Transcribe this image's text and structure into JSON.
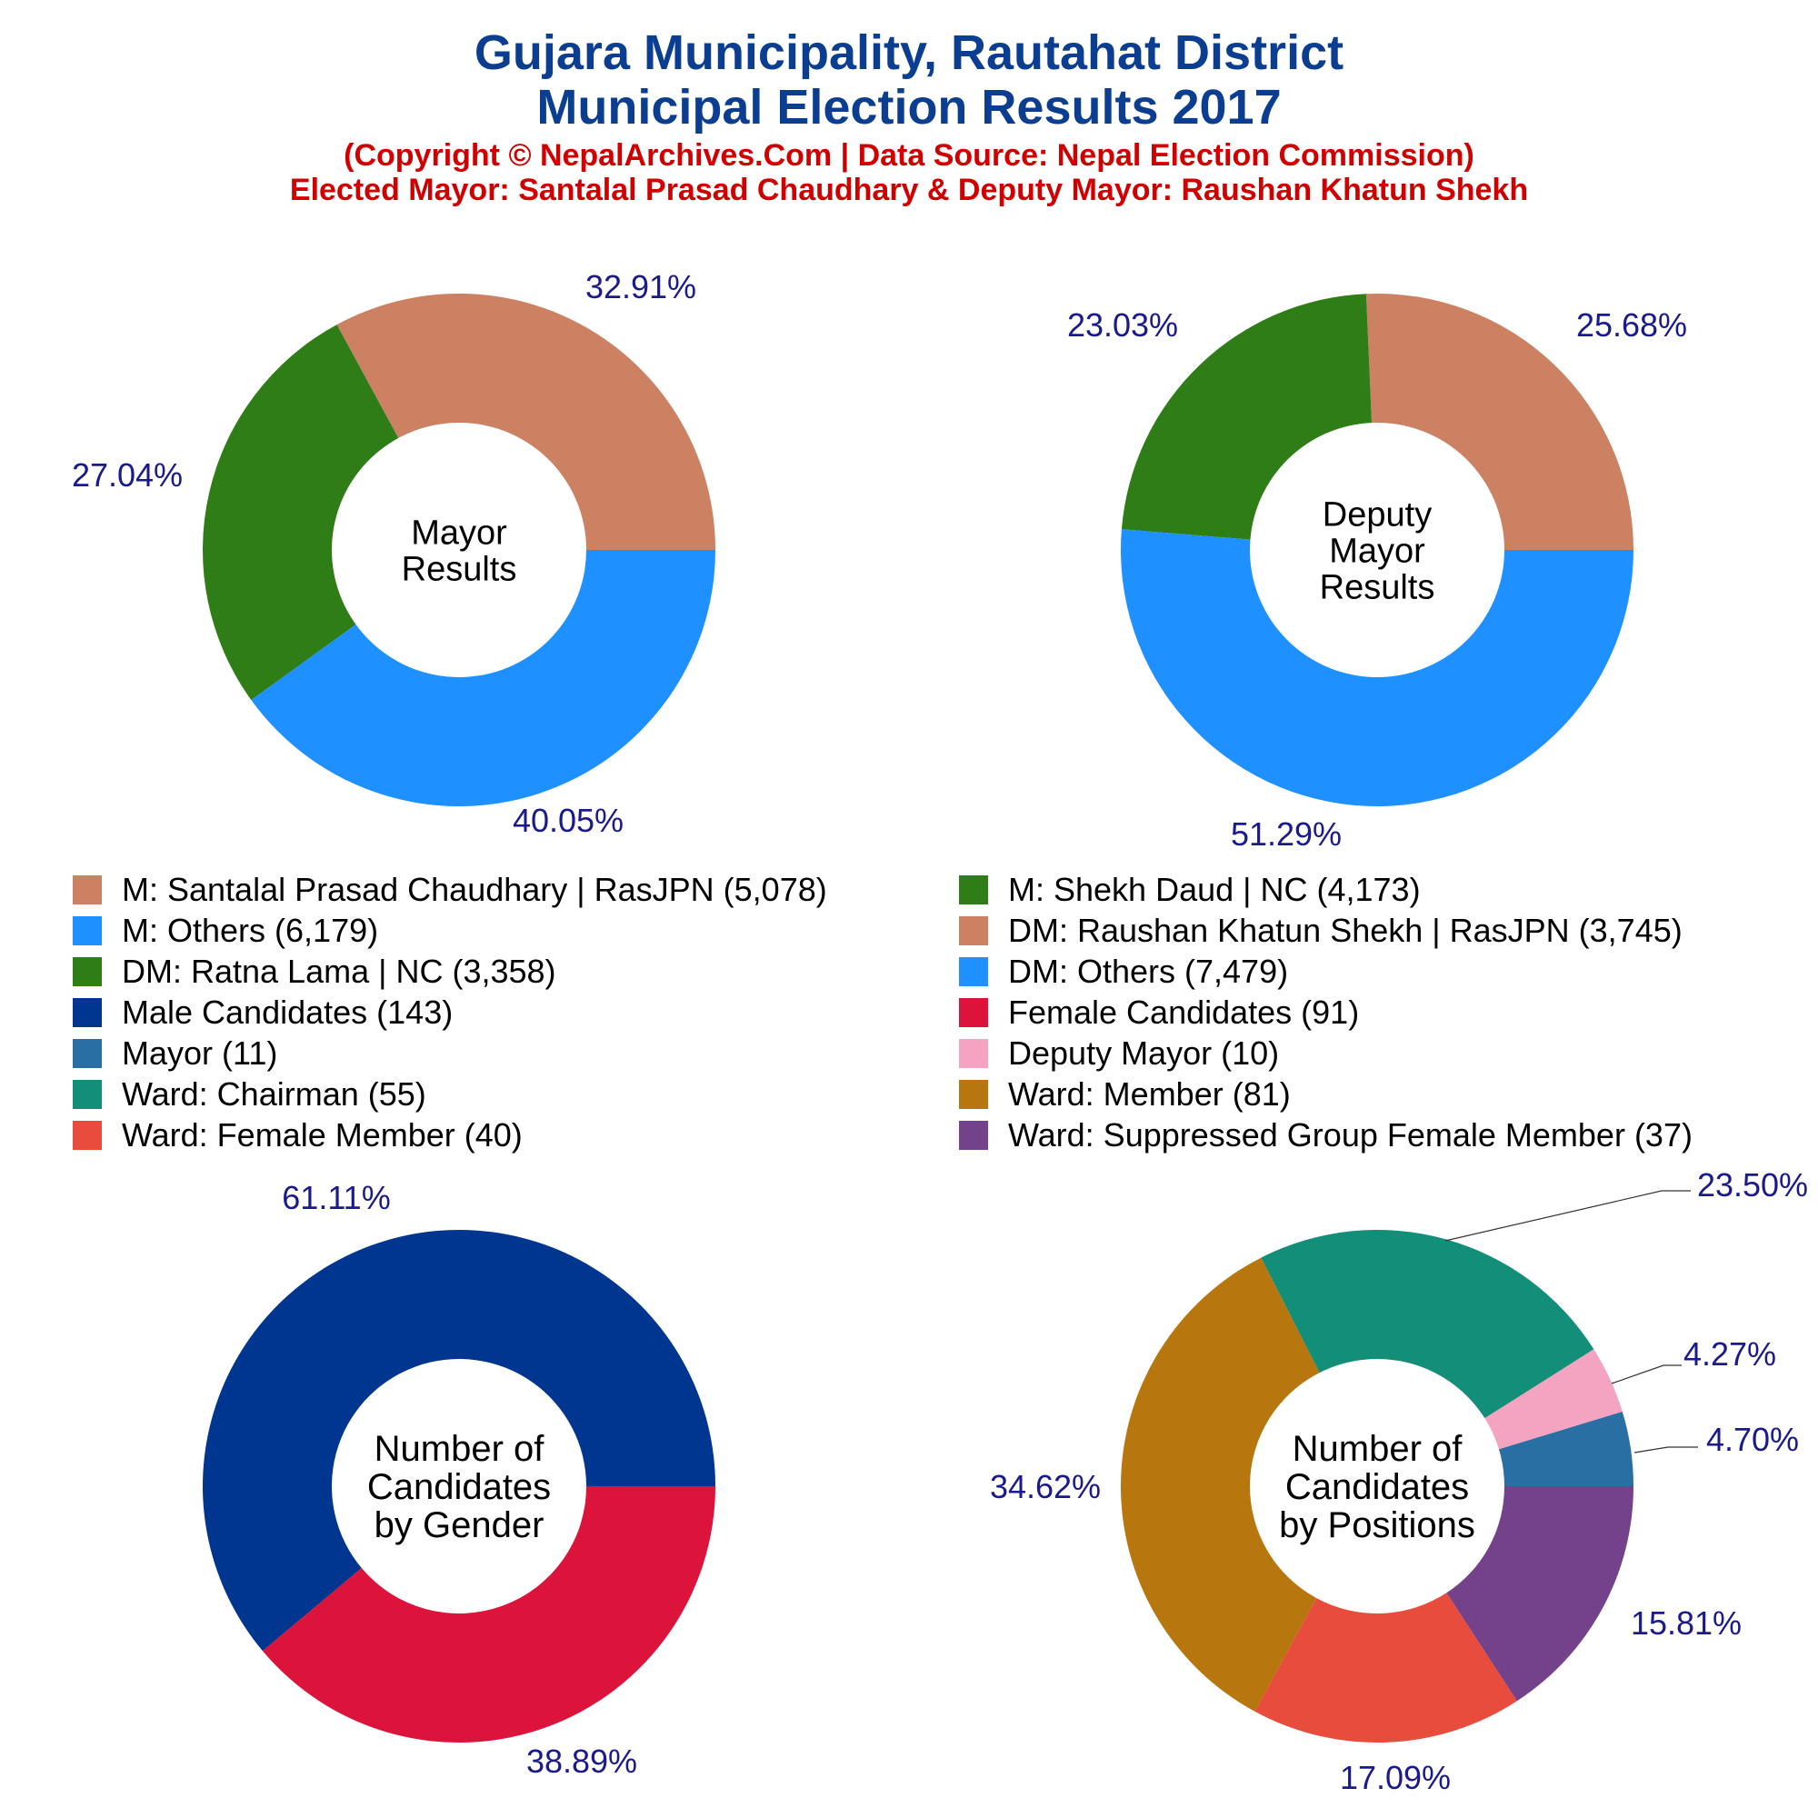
{
  "header": {
    "title_line1": "Gujara Municipality, Rautahat District",
    "title_line2": "Municipal Election Results 2017",
    "subtitle_line1": "(Copyright © NepalArchives.Com | Data Source: Nepal Election Commission)",
    "subtitle_line2": "Elected Mayor: Santalal Prasad Chaudhary & Deputy Mayor: Raushan Khatun Shekh"
  },
  "colors": {
    "title": "#0b3e91",
    "subtitle": "#d10000",
    "pct_label": "#1a1a8c"
  },
  "legend": [
    {
      "label": "M: Santalal Prasad Chaudhary | RasJPN (5,078)",
      "color": "#cd8163"
    },
    {
      "label": "M: Shekh Daud | NC (4,173)",
      "color": "#2e7d16"
    },
    {
      "label": "M: Others (6,179)",
      "color": "#1e90ff"
    },
    {
      "label": "DM: Raushan Khatun Shekh | RasJPN (3,745)",
      "color": "#cd8163"
    },
    {
      "label": "DM: Ratna Lama | NC (3,358)",
      "color": "#2e7d16"
    },
    {
      "label": "DM: Others (7,479)",
      "color": "#1e90ff"
    },
    {
      "label": "Male Candidates (143)",
      "color": "#00368f"
    },
    {
      "label": "Female Candidates (91)",
      "color": "#dc143c"
    },
    {
      "label": "Mayor (11)",
      "color": "#2a6fa4"
    },
    {
      "label": "Deputy Mayor (10)",
      "color": "#f4a3c0"
    },
    {
      "label": "Ward: Chairman (55)",
      "color": "#138e79"
    },
    {
      "label": "Ward: Member (81)",
      "color": "#b8760f"
    },
    {
      "label": "Ward: Female Member (40)",
      "color": "#e74c3c"
    },
    {
      "label": "Ward: Suppressed Group Female Member (37)",
      "color": "#74428a"
    }
  ],
  "chart_data": [
    {
      "type": "pie",
      "center_label": [
        "Mayor",
        "Results"
      ],
      "slices": [
        {
          "name": "M: Santalal Prasad Chaudhary | RasJPN",
          "value": 5078,
          "pct_label": "32.91%",
          "color": "#cd8163"
        },
        {
          "name": "M: Shekh Daud | NC",
          "value": 4173,
          "pct_label": "27.04%",
          "color": "#2e7d16"
        },
        {
          "name": "M: Others",
          "value": 6179,
          "pct_label": "40.05%",
          "color": "#1e90ff"
        }
      ]
    },
    {
      "type": "pie",
      "center_label": [
        "Deputy",
        "Mayor",
        "Results"
      ],
      "slices": [
        {
          "name": "DM: Raushan Khatun Shekh | RasJPN",
          "value": 3745,
          "pct_label": "25.68%",
          "color": "#cd8163"
        },
        {
          "name": "DM: Ratna Lama | NC",
          "value": 3358,
          "pct_label": "23.03%",
          "color": "#2e7d16"
        },
        {
          "name": "DM: Others",
          "value": 7479,
          "pct_label": "51.29%",
          "color": "#1e90ff"
        }
      ]
    },
    {
      "type": "pie",
      "center_label": [
        "Number of",
        "Candidates",
        "by Gender"
      ],
      "slices": [
        {
          "name": "Male Candidates",
          "value": 143,
          "pct_label": "61.11%",
          "color": "#00368f"
        },
        {
          "name": "Female Candidates",
          "value": 91,
          "pct_label": "38.89%",
          "color": "#dc143c"
        }
      ]
    },
    {
      "type": "pie",
      "center_label": [
        "Number of",
        "Candidates",
        "by Positions"
      ],
      "slices": [
        {
          "name": "Mayor",
          "value": 11,
          "pct_label": "4.70%",
          "color": "#2a6fa4"
        },
        {
          "name": "Deputy Mayor",
          "value": 10,
          "pct_label": "4.27%",
          "color": "#f4a3c0"
        },
        {
          "name": "Ward: Chairman",
          "value": 55,
          "pct_label": "23.50%",
          "color": "#138e79"
        },
        {
          "name": "Ward: Member",
          "value": 81,
          "pct_label": "34.62%",
          "color": "#b8760f"
        },
        {
          "name": "Ward: Female Member",
          "value": 40,
          "pct_label": "17.09%",
          "color": "#e74c3c"
        },
        {
          "name": "Ward: Suppressed Group Female Member",
          "value": 37,
          "pct_label": "15.81%",
          "color": "#74428a"
        }
      ]
    }
  ]
}
